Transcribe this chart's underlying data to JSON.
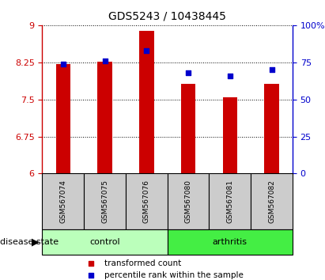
{
  "title": "GDS5243 / 10438445",
  "samples": [
    "GSM567074",
    "GSM567075",
    "GSM567076",
    "GSM567080",
    "GSM567081",
    "GSM567082"
  ],
  "bar_values": [
    8.22,
    8.27,
    8.88,
    7.82,
    7.55,
    7.82
  ],
  "percentile_values": [
    74,
    76,
    83,
    68,
    66,
    70
  ],
  "ylim_left": [
    6,
    9
  ],
  "ylim_right": [
    0,
    100
  ],
  "yticks_left": [
    6,
    6.75,
    7.5,
    8.25,
    9
  ],
  "ytick_labels_left": [
    "6",
    "6.75",
    "7.5",
    "8.25",
    "9"
  ],
  "yticks_right": [
    0,
    25,
    50,
    75,
    100
  ],
  "ytick_labels_right": [
    "0",
    "25",
    "50",
    "75",
    "100%"
  ],
  "groups": [
    {
      "label": "control",
      "indices": [
        0,
        1,
        2
      ],
      "color": "#bbffbb"
    },
    {
      "label": "arthritis",
      "indices": [
        3,
        4,
        5
      ],
      "color": "#44ee44"
    }
  ],
  "bar_color": "#cc0000",
  "percentile_color": "#0000cc",
  "bar_bottom": 6,
  "label_bar": "transformed count",
  "label_percentile": "percentile rank within the sample",
  "disease_state_label": "disease state",
  "left_axis_color": "#cc0000",
  "right_axis_color": "#0000cc",
  "figsize": [
    4.11,
    3.54
  ],
  "dpi": 100
}
